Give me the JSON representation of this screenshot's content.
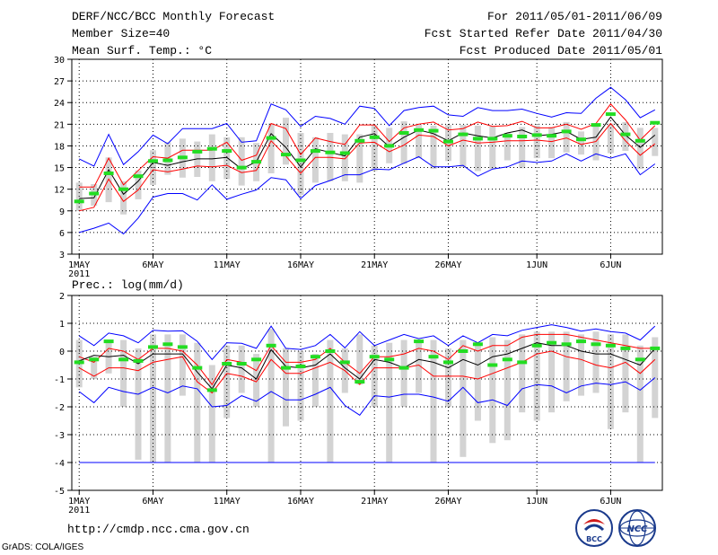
{
  "header": {
    "title": "DERF/NCC/BCC Monthly Forecast",
    "member_size": "Member Size=40",
    "variable": "Mean Surf. Temp.: °C",
    "period": "For 2011/05/01-2011/06/09",
    "start_date": "Fcst Started Refer Date 2011/04/30",
    "produced_date": "Fcst Produced Date 2011/05/01"
  },
  "footer": {
    "url": "http://cmdp.ncc.cma.gov.cn",
    "grads_credit": "GrADS: COLA/IGES",
    "logos": [
      "BCC",
      "NCC"
    ]
  },
  "colors": {
    "outer": "#0000ff",
    "inner": "#ff0000",
    "mean": "#000000",
    "observed": "#22dd22",
    "box": "#d3d3d3",
    "grid": "#000000"
  },
  "chart_data": [
    {
      "type": "line",
      "title": "Mean Surf. Temp.: °C",
      "x_tick_labels": [
        "1MAY",
        "6MAY",
        "11MAY",
        "16MAY",
        "21MAY",
        "26MAY",
        "1JUN",
        "6JUN"
      ],
      "x_year_label": "2011",
      "ylim": [
        3,
        30
      ],
      "yticks": [
        3,
        6,
        9,
        12,
        15,
        18,
        21,
        24,
        27,
        30
      ],
      "series": [
        {
          "name": "max",
          "values": [
            16.2,
            15.2,
            19.6,
            15.4,
            17.2,
            19.5,
            18.3,
            20.4,
            20.4,
            20.4,
            21.1,
            18.5,
            18.7,
            23.8,
            23.0,
            20.7,
            22.1,
            21.8,
            21.0,
            23.5,
            23.2,
            20.8,
            22.9,
            23.3,
            23.5,
            22.3,
            22.1,
            23.3,
            22.9,
            22.9,
            23.1,
            22.5,
            22.0,
            22.6,
            22.5,
            24.6,
            26.1,
            24.4,
            21.9,
            23.0
          ]
        },
        {
          "name": "upper",
          "values": [
            12.3,
            12.3,
            16.3,
            12.6,
            14.6,
            16.5,
            16.3,
            17.4,
            17.4,
            17.4,
            18.5,
            16.0,
            16.7,
            21.1,
            20.4,
            16.8,
            19.1,
            18.6,
            18.2,
            20.9,
            20.9,
            18.6,
            20.5,
            21.0,
            21.3,
            20.2,
            20.4,
            21.3,
            20.7,
            20.8,
            21.4,
            20.5,
            20.5,
            21.0,
            20.3,
            21.1,
            23.8,
            21.6,
            18.8,
            20.8
          ]
        },
        {
          "name": "mean",
          "values": [
            10.7,
            10.8,
            14.7,
            11.3,
            13.1,
            15.7,
            15.3,
            15.8,
            16.2,
            16.2,
            16.4,
            14.8,
            15.8,
            19.7,
            17.8,
            15.1,
            17.6,
            17.1,
            16.6,
            19.2,
            19.7,
            17.9,
            19.2,
            20.2,
            19.7,
            18.7,
            19.8,
            19.4,
            19.1,
            19.8,
            20.2,
            19.4,
            19.6,
            20.0,
            18.9,
            19.2,
            22.0,
            19.5,
            17.8,
            19.5
          ]
        },
        {
          "name": "lower",
          "values": [
            9.0,
            9.5,
            13.4,
            10.3,
            11.9,
            14.7,
            14.4,
            14.8,
            15.2,
            15.1,
            15.3,
            14.3,
            14.6,
            18.7,
            16.6,
            14.2,
            16.4,
            16.4,
            16.2,
            18.4,
            18.5,
            17.2,
            18.1,
            19.5,
            19.3,
            18.0,
            18.8,
            18.4,
            18.5,
            18.7,
            18.7,
            18.8,
            18.6,
            19.1,
            18.2,
            18.6,
            21.1,
            18.7,
            16.7,
            18.3
          ]
        },
        {
          "name": "min",
          "values": [
            6.0,
            6.6,
            7.3,
            5.8,
            8.0,
            10.9,
            11.4,
            11.4,
            10.5,
            12.6,
            10.6,
            11.3,
            11.9,
            13.6,
            13.3,
            10.7,
            12.5,
            13.2,
            14.0,
            14.0,
            14.8,
            14.7,
            15.6,
            16.5,
            15.1,
            15.1,
            15.3,
            13.8,
            14.8,
            15.1,
            15.9,
            15.7,
            15.9,
            16.9,
            15.9,
            16.9,
            16.3,
            16.9,
            14.0,
            15.5
          ]
        },
        {
          "name": "observed",
          "values": [
            10.3,
            11.4,
            14.2,
            12.0,
            13.8,
            15.9,
            16.0,
            16.4,
            17.2,
            17.6,
            17.3,
            15.0,
            15.8,
            19.1,
            16.8,
            16.0,
            17.3,
            17.1,
            17.0,
            18.7,
            19.2,
            18.0,
            19.8,
            20.2,
            20.1,
            18.6,
            19.6,
            19.0,
            19.0,
            19.4,
            19.3,
            19.5,
            19.4,
            20.0,
            18.9,
            20.9,
            22.4,
            19.6,
            18.7,
            21.2
          ]
        },
        {
          "name": "box_top",
          "values": [
            12.9,
            12.7,
            16.4,
            13.1,
            14.6,
            17.4,
            18.5,
            19.0,
            18.6,
            19.6,
            19.2,
            19.2,
            18.4,
            21.1,
            21.9,
            19.8,
            19.2,
            19.8,
            19.6,
            19.6,
            20.9,
            20.5,
            21.4,
            20.9,
            20.8,
            20.9,
            20.9,
            20.8,
            20.7,
            19.8,
            20.6,
            20.8,
            20.6,
            21.3,
            20.0,
            20.7,
            21.1,
            21.3,
            20.5,
            20.5
          ]
        },
        {
          "name": "box_bottom",
          "values": [
            9.0,
            9.7,
            10.2,
            8.5,
            10.6,
            12.6,
            14.0,
            13.6,
            13.7,
            13.1,
            13.4,
            12.5,
            13.1,
            14.2,
            15.4,
            11.2,
            12.9,
            13.1,
            13.1,
            12.9,
            14.5,
            15.6,
            15.5,
            16.3,
            14.8,
            15.9,
            15.0,
            14.5,
            14.8,
            16.0,
            14.9,
            16.3,
            16.3,
            17.1,
            16.8,
            16.0,
            17.0,
            17.3,
            14.8,
            16.6
          ]
        }
      ]
    },
    {
      "type": "line",
      "title": "Prec.: log(mm/d)",
      "x_tick_labels": [
        "1MAY",
        "6MAY",
        "11MAY",
        "16MAY",
        "21MAY",
        "26MAY",
        "1JUN",
        "6JUN"
      ],
      "x_year_label": "2011",
      "ylim": [
        -5,
        2
      ],
      "yticks": [
        -5,
        -4,
        -3,
        -2,
        -1,
        0,
        1,
        2
      ],
      "series": [
        {
          "name": "max",
          "values": [
            0.55,
            0.2,
            0.65,
            0.55,
            0.3,
            0.75,
            0.72,
            0.73,
            0.35,
            -0.3,
            0.3,
            0.28,
            0.1,
            0.9,
            0.1,
            0.06,
            0.2,
            0.6,
            0.12,
            0.7,
            0.2,
            0.4,
            0.6,
            0.45,
            0.55,
            0.2,
            0.55,
            0.3,
            0.6,
            0.55,
            0.75,
            0.85,
            0.95,
            0.85,
            0.72,
            0.8,
            0.7,
            0.65,
            0.4,
            0.9
          ]
        },
        {
          "name": "upper",
          "values": [
            -0.2,
            -0.4,
            0.1,
            0.0,
            -0.3,
            0.1,
            0.1,
            0.0,
            -0.5,
            -1.2,
            -0.3,
            -0.4,
            -0.7,
            0.2,
            -0.4,
            -0.4,
            -0.3,
            0.1,
            -0.4,
            -0.8,
            -0.2,
            -0.2,
            -0.1,
            0.1,
            0.0,
            -0.3,
            0.2,
            0.0,
            0.2,
            0.2,
            0.5,
            0.6,
            0.6,
            0.6,
            0.5,
            0.4,
            0.3,
            0.2,
            0.1,
            0.1
          ]
        },
        {
          "name": "mean",
          "values": [
            -0.35,
            -0.15,
            -0.2,
            -0.15,
            -0.45,
            -0.1,
            -0.1,
            -0.1,
            -0.75,
            -1.35,
            -0.5,
            -0.6,
            -1.0,
            0.05,
            -0.55,
            -0.6,
            -0.5,
            -0.1,
            -0.6,
            -1.0,
            -0.3,
            -0.4,
            -0.6,
            -0.3,
            -0.4,
            -0.6,
            -0.3,
            -0.5,
            -0.2,
            -0.1,
            0.1,
            0.3,
            0.2,
            0.2,
            0.0,
            -0.1,
            -0.1,
            -0.3,
            -0.5,
            0.1
          ]
        },
        {
          "name": "lower",
          "values": [
            -0.6,
            -0.9,
            -0.6,
            -0.6,
            -0.7,
            -0.4,
            -0.3,
            -0.2,
            -1.1,
            -1.5,
            -0.8,
            -0.9,
            -1.1,
            -0.3,
            -0.8,
            -0.8,
            -0.6,
            -0.4,
            -0.7,
            -1.2,
            -0.6,
            -0.6,
            -0.6,
            -0.5,
            -0.9,
            -0.9,
            -0.9,
            -1.0,
            -0.8,
            -0.6,
            -0.4,
            -0.1,
            0.0,
            -0.2,
            -0.3,
            -0.5,
            -0.6,
            -0.4,
            -0.8,
            -0.3
          ]
        },
        {
          "name": "min",
          "values": [
            -1.45,
            -1.85,
            -1.3,
            -1.45,
            -1.55,
            -1.3,
            -1.5,
            -1.25,
            -1.35,
            -2.0,
            -1.95,
            -1.6,
            -1.8,
            -1.45,
            -1.75,
            -1.75,
            -1.55,
            -1.3,
            -1.95,
            -2.3,
            -1.6,
            -1.65,
            -1.55,
            -1.55,
            -1.65,
            -1.8,
            -1.3,
            -1.85,
            -1.75,
            -1.95,
            -1.35,
            -1.2,
            -1.25,
            -1.5,
            -1.25,
            -1.15,
            -1.2,
            -1.1,
            -1.4,
            -0.95
          ]
        },
        {
          "name": "observed",
          "values": [
            -0.4,
            -0.3,
            0.35,
            -0.3,
            -0.35,
            0.15,
            0.25,
            0.15,
            -0.6,
            -1.4,
            -0.45,
            -0.45,
            -0.3,
            0.2,
            -0.6,
            -0.55,
            -0.2,
            0.0,
            -0.4,
            -1.1,
            -0.2,
            -0.3,
            -0.6,
            0.35,
            -0.2,
            -0.4,
            0.0,
            0.25,
            -0.5,
            -0.3,
            -0.4,
            0.2,
            0.3,
            0.25,
            0.35,
            0.25,
            0.2,
            0.1,
            -0.3,
            0.1
          ]
        },
        {
          "name": "box_top",
          "values": [
            0.4,
            -0.2,
            0.4,
            0.4,
            0.1,
            0.6,
            0.6,
            0.6,
            0.3,
            -0.5,
            0.2,
            0.2,
            -0.1,
            0.8,
            0.1,
            0.0,
            -0.1,
            0.4,
            0.1,
            0.6,
            0.2,
            0.3,
            0.4,
            0.3,
            0.4,
            0.1,
            0.4,
            0.2,
            0.5,
            0.4,
            0.6,
            0.7,
            0.7,
            0.7,
            0.6,
            0.7,
            0.6,
            0.6,
            0.2,
            0.5
          ]
        },
        {
          "name": "box_bottom",
          "values": [
            -1.3,
            -1.0,
            -0.8,
            -2.0,
            -3.9,
            -4.0,
            -4.0,
            -1.6,
            -4.0,
            -4.0,
            -2.4,
            -1.5,
            -2.0,
            -4.0,
            -2.7,
            -2.5,
            -2.0,
            -4.0,
            -1.5,
            -1.2,
            -2.0,
            -4.0,
            -2.0,
            -1.5,
            -4.0,
            -2.0,
            -3.8,
            -2.5,
            -3.3,
            -3.2,
            -2.2,
            -2.5,
            -2.2,
            -1.8,
            -1.6,
            -1.5,
            -2.8,
            -2.2,
            -4.0,
            -2.4
          ]
        },
        {
          "name": "floor",
          "values": [
            -4,
            -4,
            -4,
            -4,
            -4,
            -4,
            -4,
            -4,
            -4,
            -4,
            -4,
            -4,
            -4,
            -4,
            -4,
            -4,
            -4,
            -4,
            -4,
            -4,
            -4,
            -4,
            -4,
            -4,
            -4,
            -4,
            -4,
            -4,
            -4,
            -4,
            -4,
            -4,
            -4,
            -4,
            -4,
            -4,
            -4,
            -4,
            -4,
            -4
          ]
        }
      ]
    }
  ]
}
